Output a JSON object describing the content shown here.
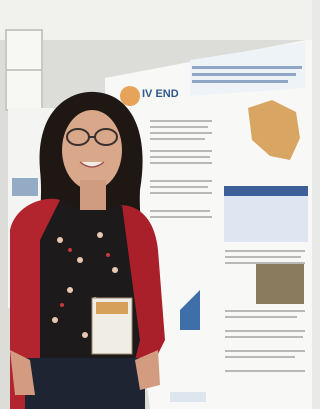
{
  "poster": {
    "logo_text": "IV END"
  }
}
